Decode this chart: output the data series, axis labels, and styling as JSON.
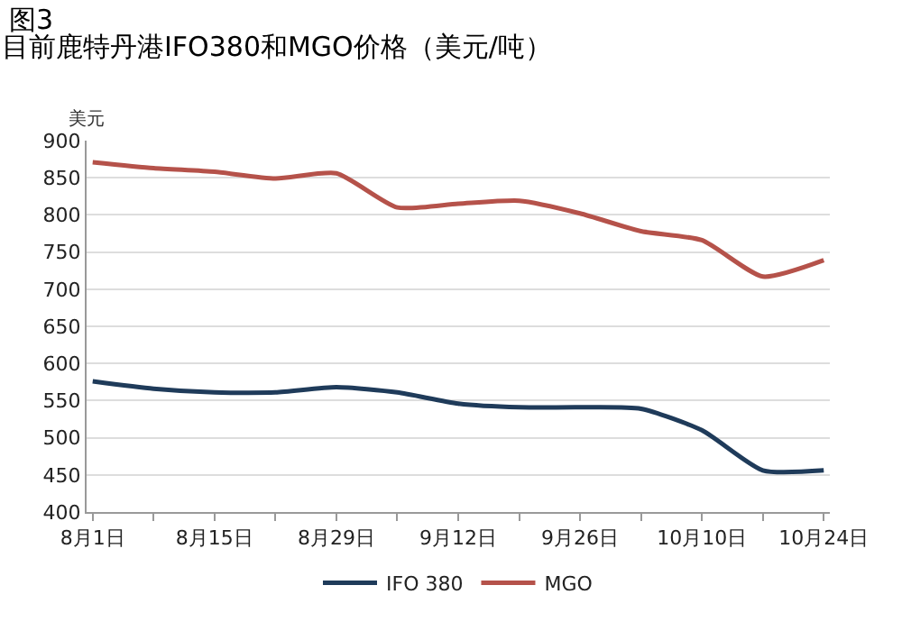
{
  "chart_data": {
    "type": "line",
    "title": "图3",
    "subtitle": "目前鹿特丹港IFO380和MGO价格（美元/吨）",
    "ylabel": "美元",
    "categories": [
      "8月1日",
      null,
      "8月15日",
      null,
      "8月29日",
      null,
      "9月12日",
      null,
      "9月26日",
      null,
      "10月10日",
      null,
      "10月24日"
    ],
    "series": [
      {
        "name": "IFO 380",
        "color": "#1f3b5a",
        "values": [
          576,
          566,
          561,
          561,
          568,
          561,
          546,
          541,
          541,
          539,
          510,
          456,
          456
        ]
      },
      {
        "name": "MGO",
        "color": "#b5524a",
        "values": [
          871,
          863,
          858,
          849,
          856,
          810,
          815,
          819,
          802,
          778,
          766,
          717,
          739
        ]
      }
    ],
    "ylim": [
      400,
      900
    ],
    "yticks": [
      400,
      450,
      500,
      550,
      600,
      650,
      700,
      750,
      800,
      850,
      900
    ],
    "grid": "y",
    "legend": "bottom",
    "marker": "none",
    "line_style": "solid"
  }
}
